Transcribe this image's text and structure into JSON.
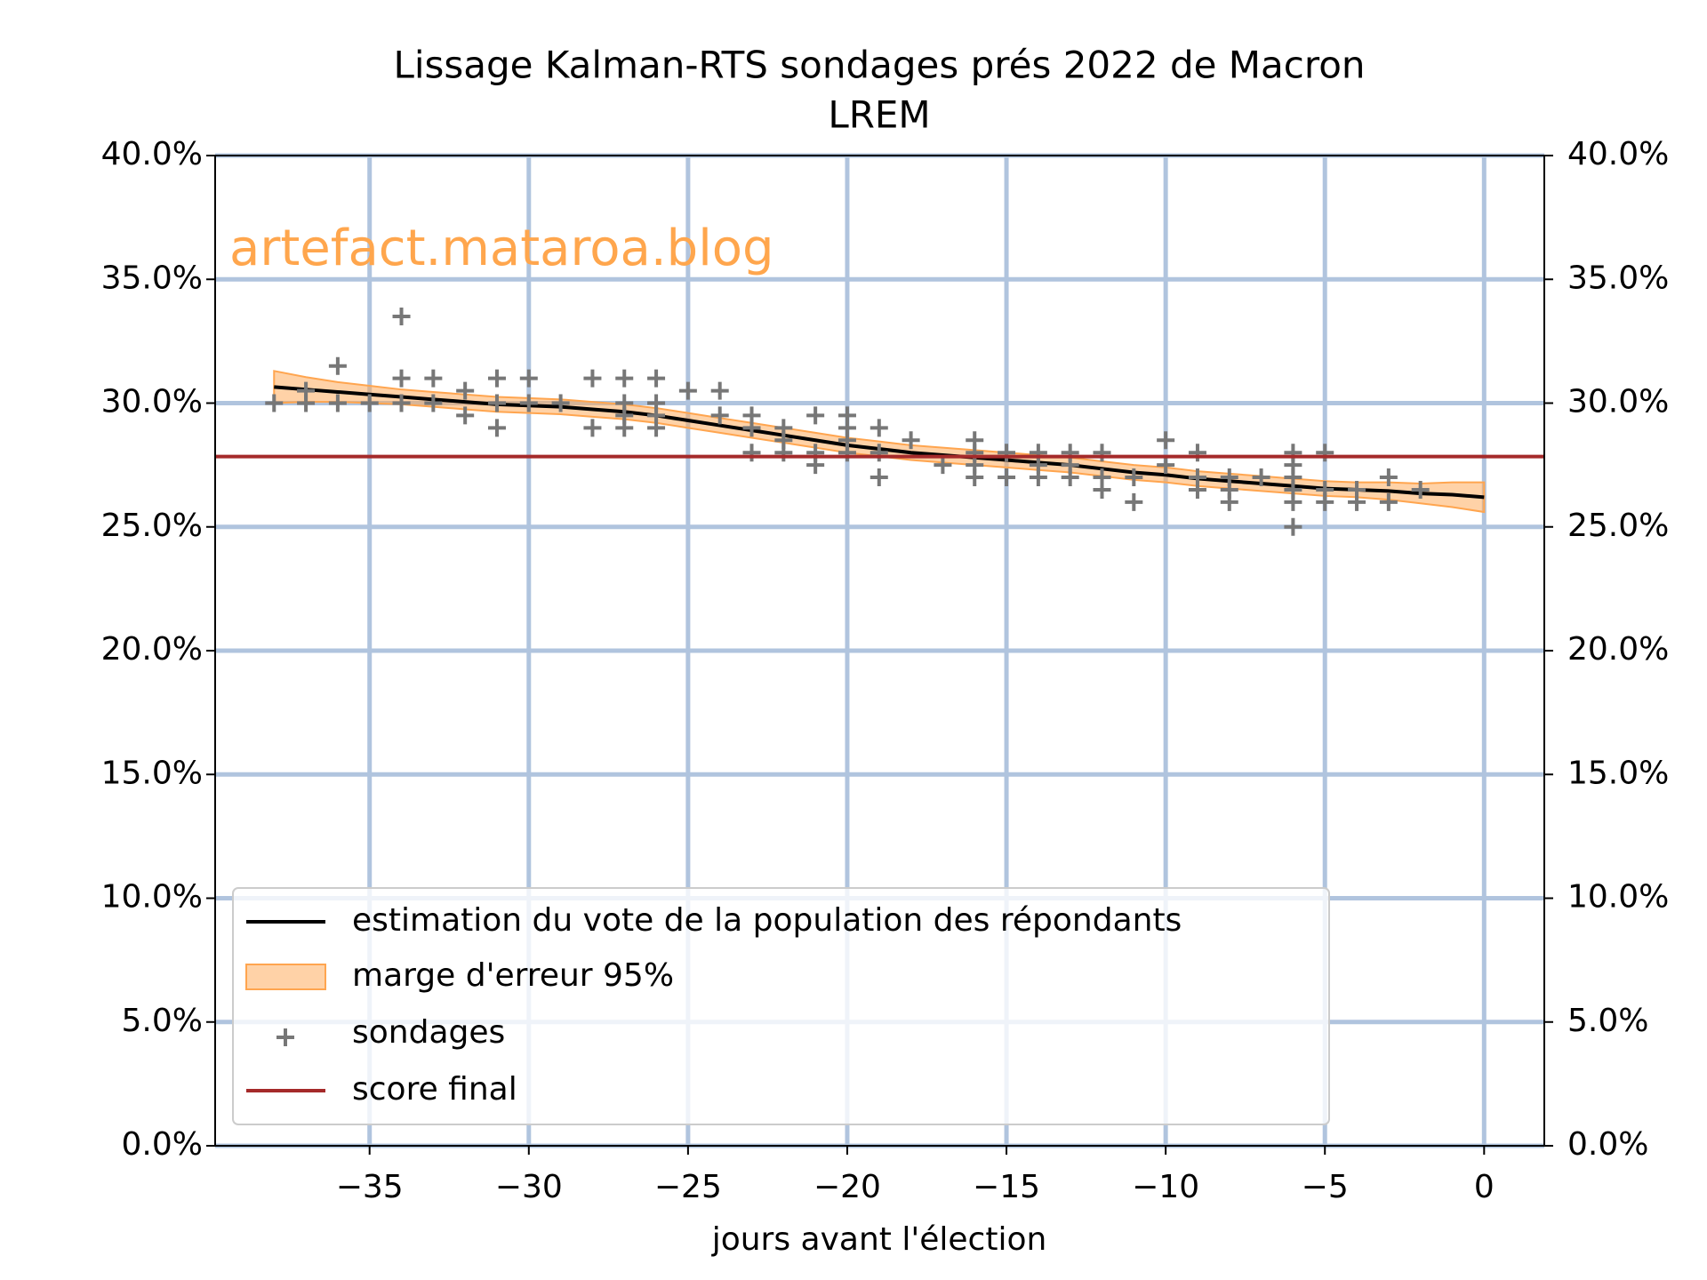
{
  "chart_data": {
    "type": "line",
    "title": [
      "Lissage Kalman-RTS sondages prés 2022 de Macron",
      "LREM"
    ],
    "watermark": "artefact.mataroa.blog",
    "xlabel": "jours avant l'élection",
    "xlim": [
      -39.85,
      1.89
    ],
    "ylim": [
      0,
      40
    ],
    "xticks": [
      {
        "value": -35,
        "label": "−35"
      },
      {
        "value": -30,
        "label": "−30"
      },
      {
        "value": -25,
        "label": "−25"
      },
      {
        "value": -20,
        "label": "−20"
      },
      {
        "value": -15,
        "label": "−15"
      },
      {
        "value": -10,
        "label": "−10"
      },
      {
        "value": -5,
        "label": "−5"
      },
      0
    ],
    "yticks": [
      {
        "value": 0,
        "label": "0.0%"
      },
      {
        "value": 5,
        "label": "5.0%"
      },
      {
        "value": 10,
        "label": "10.0%"
      },
      {
        "value": 15,
        "label": "15.0%"
      },
      {
        "value": 20,
        "label": "20.0%"
      },
      {
        "value": 25,
        "label": "25.0%"
      },
      {
        "value": 30,
        "label": "30.0%"
      },
      {
        "value": 35,
        "label": "35.0%"
      },
      {
        "value": 40,
        "label": "40.0%"
      }
    ],
    "grid": true,
    "grid_color": "#b0c4de",
    "legend": "lower left",
    "series": [
      {
        "name": "estimation du vote de la population des répondants",
        "type": "line",
        "color": "#000000",
        "x": [
          -38,
          -37,
          -36,
          -35,
          -34,
          -33,
          -32,
          -31,
          -30,
          -29,
          -28,
          -27,
          -26,
          -25,
          -24,
          -23,
          -22,
          -21,
          -20,
          -19,
          -18,
          -17,
          -16,
          -15,
          -14,
          -13,
          -12,
          -11,
          -10,
          -9,
          -8,
          -7,
          -6,
          -5,
          -4,
          -3,
          -2,
          -1,
          0
        ],
        "values": [
          30.65,
          30.55,
          30.45,
          30.35,
          30.25,
          30.15,
          30.05,
          29.95,
          29.9,
          29.85,
          29.75,
          29.65,
          29.5,
          29.3,
          29.1,
          28.9,
          28.7,
          28.5,
          28.3,
          28.15,
          28.0,
          27.9,
          27.8,
          27.7,
          27.6,
          27.5,
          27.35,
          27.2,
          27.1,
          26.95,
          26.85,
          26.75,
          26.65,
          26.55,
          26.5,
          26.45,
          26.35,
          26.3,
          26.2
        ]
      },
      {
        "name": "marge d'erreur 95%",
        "type": "band",
        "color": "#ffa54f",
        "x": [
          -38,
          -37,
          -36,
          -35,
          -34,
          -33,
          -32,
          -31,
          -30,
          -29,
          -28,
          -27,
          -26,
          -25,
          -24,
          -23,
          -22,
          -21,
          -20,
          -19,
          -18,
          -17,
          -16,
          -15,
          -14,
          -13,
          -12,
          -11,
          -10,
          -9,
          -8,
          -7,
          -6,
          -5,
          -4,
          -3,
          -2,
          -1,
          0
        ],
        "upper": [
          31.3,
          31.05,
          30.85,
          30.7,
          30.55,
          30.45,
          30.35,
          30.25,
          30.2,
          30.15,
          30.05,
          29.95,
          29.8,
          29.6,
          29.4,
          29.2,
          29.0,
          28.8,
          28.6,
          28.45,
          28.3,
          28.2,
          28.1,
          28.0,
          27.9,
          27.8,
          27.65,
          27.5,
          27.4,
          27.25,
          27.15,
          27.05,
          26.95,
          26.85,
          26.8,
          26.8,
          26.75,
          26.8,
          26.8
        ],
        "lower": [
          30.0,
          30.05,
          30.05,
          30.0,
          29.95,
          29.85,
          29.75,
          29.65,
          29.6,
          29.55,
          29.45,
          29.35,
          29.2,
          29.0,
          28.8,
          28.6,
          28.4,
          28.2,
          28.0,
          27.85,
          27.7,
          27.6,
          27.5,
          27.4,
          27.3,
          27.2,
          27.05,
          26.9,
          26.8,
          26.65,
          26.55,
          26.45,
          26.35,
          26.25,
          26.2,
          26.1,
          25.95,
          25.8,
          25.6
        ]
      },
      {
        "name": "sondages",
        "type": "scatter",
        "color": "#777777",
        "x": [
          -38,
          -37,
          -37,
          -36,
          -36,
          -35,
          -34,
          -34,
          -34,
          -33,
          -33,
          -32,
          -32,
          -31,
          -31,
          -31,
          -30,
          -30,
          -29,
          -28,
          -28,
          -27,
          -27,
          -27,
          -27,
          -26,
          -26,
          -26,
          -26,
          -25,
          -24,
          -24,
          -23,
          -23,
          -23,
          -22,
          -22,
          -22,
          -21,
          -21,
          -21,
          -20,
          -20,
          -20,
          -20,
          -19,
          -19,
          -19,
          -18,
          -17,
          -16,
          -16,
          -16,
          -16,
          -15,
          -15,
          -14,
          -14,
          -14,
          -13,
          -13,
          -13,
          -12,
          -12,
          -12,
          -11,
          -11,
          -10,
          -10,
          -9,
          -9,
          -9,
          -8,
          -8,
          -8,
          -7,
          -6,
          -6,
          -6,
          -6,
          -6,
          -6,
          -5,
          -5,
          -5,
          -4,
          -4,
          -3,
          -3,
          -2
        ],
        "values": [
          30,
          30,
          30.5,
          30,
          31.5,
          30,
          30,
          31,
          33.5,
          30,
          31,
          29.5,
          30.5,
          29,
          30,
          31,
          30,
          31,
          30,
          29,
          31,
          29,
          29.5,
          30,
          31,
          29,
          29.5,
          30,
          31,
          30.5,
          29.5,
          30.5,
          28,
          29,
          29.5,
          28,
          28.5,
          29,
          27.5,
          28,
          29.5,
          28,
          28.5,
          29,
          29.5,
          27,
          28,
          29,
          28.5,
          27.5,
          27,
          27.5,
          28,
          28.5,
          27,
          28,
          27,
          27.5,
          28,
          27,
          27.5,
          28,
          26.5,
          27,
          28,
          26,
          27,
          27.5,
          28.5,
          26.5,
          27,
          28,
          26,
          26.5,
          27,
          27,
          25,
          26,
          26.5,
          27,
          27.5,
          28,
          26,
          26.5,
          28,
          26,
          26.5,
          26,
          27,
          26.5
        ]
      },
      {
        "name": "score final",
        "type": "hline",
        "color": "#a52a2a",
        "value": 27.84
      }
    ]
  }
}
